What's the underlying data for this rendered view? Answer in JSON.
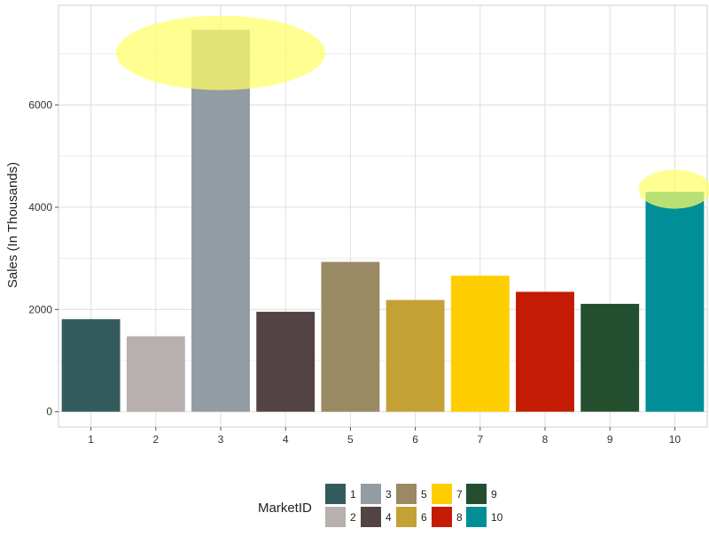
{
  "chart_data": {
    "type": "bar",
    "categories": [
      "1",
      "2",
      "3",
      "4",
      "5",
      "6",
      "7",
      "8",
      "9",
      "10"
    ],
    "values": [
      1810,
      1475,
      7470,
      1955,
      2930,
      2185,
      2660,
      2345,
      2110,
      4300
    ],
    "colors": [
      "#335b5c",
      "#b8afaf",
      "#939ba3",
      "#524344",
      "#9a8a63",
      "#c4a135",
      "#fece00",
      "#c31b04",
      "#244f2f",
      "#008f96"
    ],
    "ylabel": "Sales (In Thousands)",
    "xlabel": "",
    "ylim": [
      -300,
      7950
    ],
    "yticks": [
      0,
      2000,
      4000,
      6000
    ],
    "grid": true,
    "highlights": [
      {
        "category": "3",
        "color": "#ffff66"
      },
      {
        "category": "10",
        "color": "#ffff66"
      }
    ],
    "legend": {
      "title": "MarketID",
      "placement": "bottom",
      "entries": [
        "1",
        "2",
        "3",
        "4",
        "5",
        "6",
        "7",
        "8",
        "9",
        "10"
      ]
    }
  }
}
